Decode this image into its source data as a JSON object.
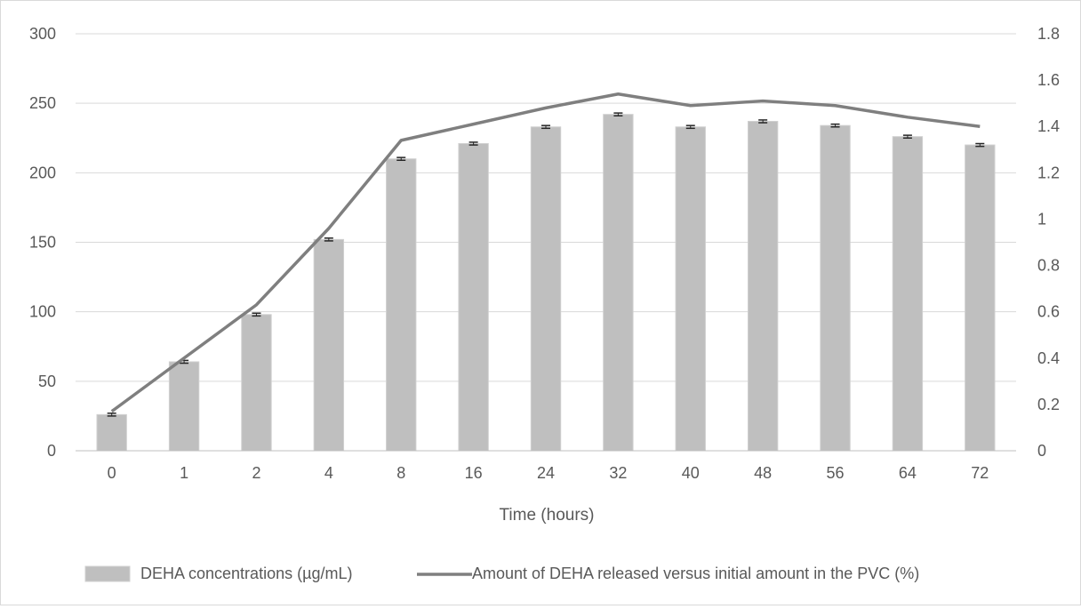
{
  "chart_data": {
    "type": "bar",
    "title": "",
    "xlabel": "Time (hours)",
    "ylabel": "",
    "y2label": "",
    "categories": [
      "0",
      "1",
      "2",
      "4",
      "8",
      "16",
      "24",
      "32",
      "40",
      "48",
      "56",
      "64",
      "72"
    ],
    "ylim": [
      0,
      300
    ],
    "yticks": [
      "0",
      "50",
      "100",
      "150",
      "200",
      "250",
      "300"
    ],
    "y2lim": [
      0,
      1.8
    ],
    "y2ticks": [
      "0",
      "0.2",
      "0.4",
      "0.6",
      "0.8",
      "1",
      "1.2",
      "1.4",
      "1.6",
      "1.8"
    ],
    "grid": true,
    "legend_position": "bottom",
    "series": [
      {
        "name": "DEHA concentrations (µg/mL)",
        "type": "bar",
        "axis": "left",
        "color": "#bfbfbf",
        "values": [
          26,
          64,
          98,
          152,
          210,
          221,
          233,
          242,
          233,
          237,
          234,
          226,
          220
        ],
        "errors": [
          1,
          1,
          1,
          1,
          1,
          1,
          1,
          1,
          1,
          1,
          1,
          1,
          1
        ]
      },
      {
        "name": "Amount of DEHA released versus initial amount in the PVC (%)",
        "type": "line",
        "axis": "right",
        "color": "#7f7f7f",
        "values": [
          0.17,
          0.4,
          0.63,
          0.96,
          1.34,
          1.41,
          1.48,
          1.54,
          1.49,
          1.51,
          1.49,
          1.44,
          1.4
        ]
      }
    ]
  }
}
